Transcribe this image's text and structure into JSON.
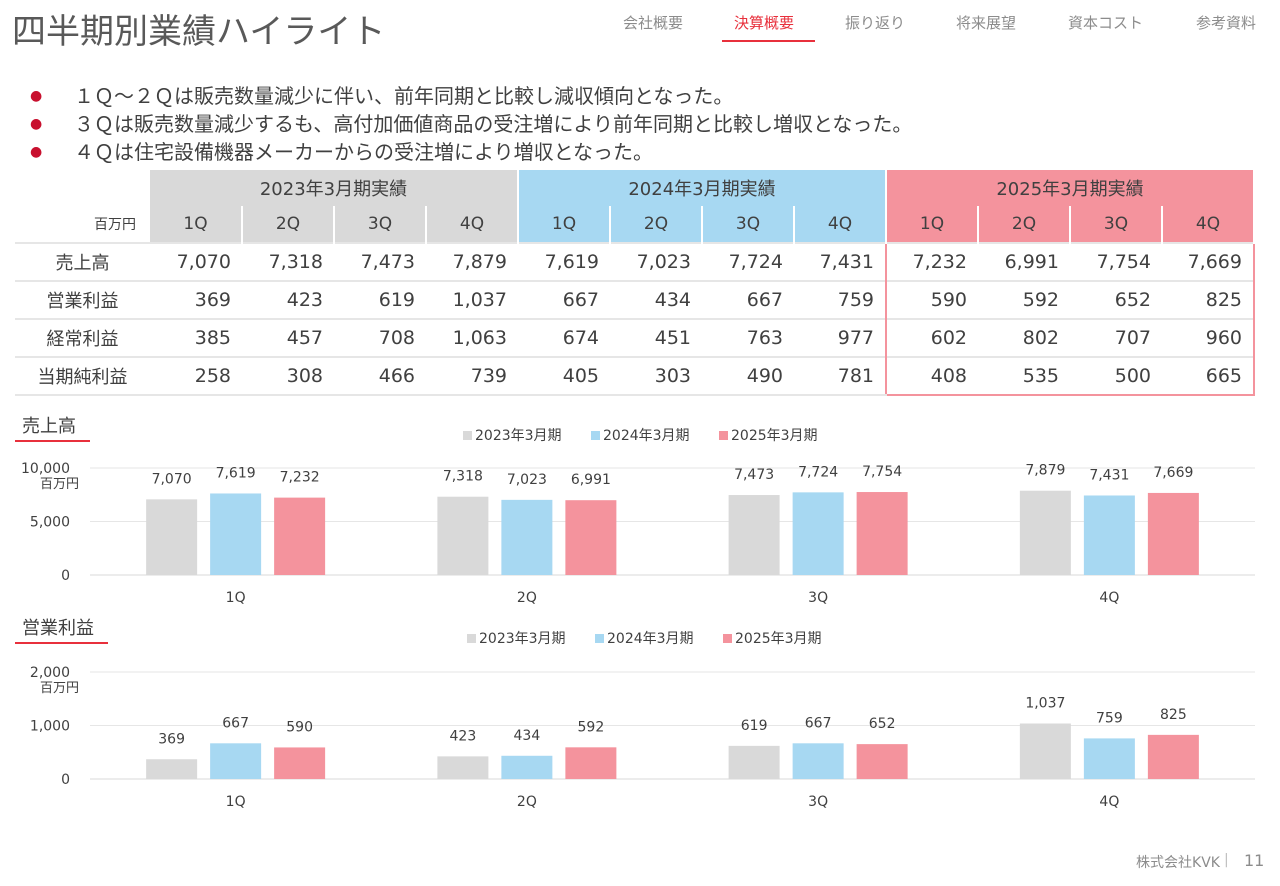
{
  "title": "四半期別業績ハイライト",
  "nav": [
    {
      "label": "会社概要"
    },
    {
      "label": "決算概要",
      "active": true
    },
    {
      "label": "振り返り"
    },
    {
      "label": "将来展望"
    },
    {
      "label": "資本コスト"
    },
    {
      "label": "参考資料"
    }
  ],
  "bullets": [
    "１Ｑ～２Ｑは販売数量減少に伴い、前年同期と比較し減収傾向となった。",
    "３Ｑは販売数量減少するも、高付加価値商品の受注増により前年同期と比較し増収となった。",
    "４Ｑは住宅設備機器メーカーからの受注増により増収となった。"
  ],
  "table": {
    "unit": "百万円",
    "years": [
      "2023年3月期実績",
      "2024年3月期実績",
      "2025年3月期実績"
    ],
    "quarters": [
      "1Q",
      "2Q",
      "3Q",
      "4Q"
    ],
    "rows": [
      {
        "label": "売上高",
        "values": [
          "7,070",
          "7,318",
          "7,473",
          "7,879",
          "7,619",
          "7,023",
          "7,724",
          "7,431",
          "7,232",
          "6,991",
          "7,754",
          "7,669"
        ]
      },
      {
        "label": "営業利益",
        "values": [
          "369",
          "423",
          "619",
          "1,037",
          "667",
          "434",
          "667",
          "759",
          "590",
          "592",
          "652",
          "825"
        ]
      },
      {
        "label": "経常利益",
        "values": [
          "385",
          "457",
          "708",
          "1,063",
          "674",
          "451",
          "763",
          "977",
          "602",
          "802",
          "707",
          "960"
        ]
      },
      {
        "label": "当期純利益",
        "values": [
          "258",
          "308",
          "466",
          "739",
          "405",
          "303",
          "490",
          "781",
          "408",
          "535",
          "500",
          "665"
        ]
      }
    ]
  },
  "colors": {
    "y2023": "#d9d9d9",
    "y2024": "#a7d8f2",
    "y2025": "#f4939d",
    "accent": "#e8303c"
  },
  "chart_data": [
    {
      "type": "bar",
      "title": "売上高",
      "unit": "百万円",
      "categories": [
        "1Q",
        "2Q",
        "3Q",
        "4Q"
      ],
      "series": [
        {
          "name": "2023年3月期",
          "values": [
            7070,
            7318,
            7473,
            7879
          ]
        },
        {
          "name": "2024年3月期",
          "values": [
            7619,
            7023,
            7724,
            7431
          ]
        },
        {
          "name": "2025年3月期",
          "values": [
            7232,
            6991,
            7754,
            7669
          ]
        }
      ],
      "ylim": [
        0,
        10000
      ],
      "yticks": [
        0,
        5000,
        10000
      ],
      "ytick_labels": [
        "0",
        "5,000",
        "10,000"
      ],
      "grid": true,
      "legend": "top-center"
    },
    {
      "type": "bar",
      "title": "営業利益",
      "unit": "百万円",
      "categories": [
        "1Q",
        "2Q",
        "3Q",
        "4Q"
      ],
      "series": [
        {
          "name": "2023年3月期",
          "values": [
            369,
            423,
            619,
            1037
          ]
        },
        {
          "name": "2024年3月期",
          "values": [
            667,
            434,
            667,
            759
          ]
        },
        {
          "name": "2025年3月期",
          "values": [
            590,
            592,
            652,
            825
          ]
        }
      ],
      "ylim": [
        0,
        2000
      ],
      "yticks": [
        0,
        1000,
        2000
      ],
      "ytick_labels": [
        "0",
        "1,000",
        "2,000"
      ],
      "grid": true,
      "legend": "top-center"
    }
  ],
  "footer": {
    "company": "株式会社KVK",
    "page": "11"
  }
}
